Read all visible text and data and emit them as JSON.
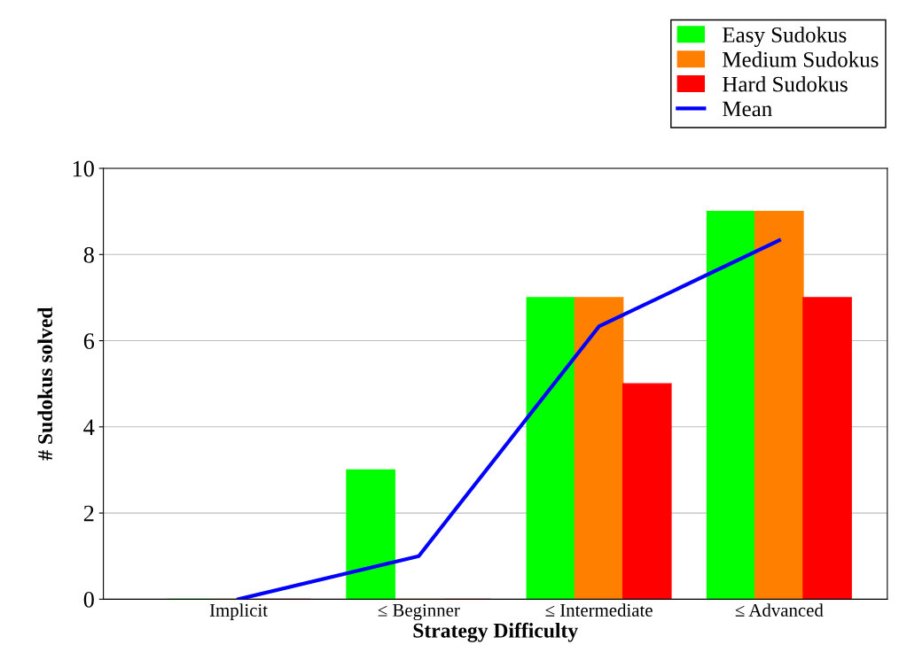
{
  "chart_data": {
    "type": "bar",
    "xlabel": "Strategy Difficulty",
    "ylabel": "# Sudokus solved",
    "categories": [
      "Implicit",
      "≤ Beginner",
      "≤ Intermediate",
      "≤ Advanced"
    ],
    "series": [
      {
        "name": "Easy Sudokus",
        "color": "#00ff00",
        "values": [
          0,
          3,
          7,
          9
        ]
      },
      {
        "name": "Medium Sudokus",
        "color": "#ff8000",
        "values": [
          0,
          0,
          7,
          9
        ]
      },
      {
        "name": "Hard Sudokus",
        "color": "#ff0000",
        "values": [
          0,
          0,
          5,
          7
        ]
      },
      {
        "name": "Mean",
        "type": "line",
        "color": "#0000ff",
        "values": [
          0,
          1,
          6.33,
          8.33
        ]
      }
    ],
    "ylim": [
      0,
      10
    ],
    "yticks": [
      0,
      2,
      4,
      6,
      8,
      10
    ],
    "grid": "y",
    "legend": "top right"
  }
}
